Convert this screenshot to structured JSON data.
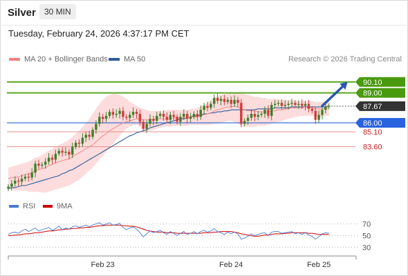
{
  "header": {
    "symbol": "Silver",
    "timeframe": "30 MIN"
  },
  "datetime": "Tuesday, February 24, 2026 4:37:17 PM CET",
  "legend": {
    "ma20": {
      "label": "MA 20 + Bollinger Bands",
      "color": "#f08080"
    },
    "ma50": {
      "label": "MA 50",
      "color": "#2e5c9a"
    },
    "rsi": {
      "label": "RSI",
      "color": "#4a78d6"
    },
    "rsi_ma": {
      "label": "9MA",
      "color": "#cc0000"
    }
  },
  "credit": "Research © 2026 Trading Central",
  "chart_data": [
    {
      "type": "candlestick",
      "ylim": [
        78.8,
        91.4
      ],
      "xlim": [
        0,
        101
      ],
      "x_ticks": [
        {
          "x": 28,
          "label": "Feb 23"
        },
        {
          "x": 66,
          "label": "Feb 24"
        },
        {
          "x": 92,
          "label": "Feb 25"
        }
      ],
      "current_price": {
        "value": 87.67,
        "label": "87.67"
      },
      "levels": [
        {
          "value": 90.1,
          "label": "90.10",
          "kind": "resistance"
        },
        {
          "value": 89.0,
          "label": "89.00",
          "kind": "resistance"
        },
        {
          "value": 86.0,
          "label": "86.00",
          "kind": "pivot"
        },
        {
          "value": 85.1,
          "label": "85.10",
          "kind": "support"
        },
        {
          "value": 83.6,
          "label": "83.60",
          "kind": "support"
        }
      ],
      "forecast_arrow": {
        "from": [
          93,
          87.7
        ],
        "to": [
          100.5,
          90.1
        ]
      },
      "closes": [
        79.6,
        79.9,
        80.2,
        80.1,
        80.4,
        80.6,
        80.5,
        81.0,
        81.9,
        81.7,
        81.8,
        82.1,
        82.5,
        82.3,
        82.9,
        83.2,
        83.0,
        83.1,
        82.8,
        83.6,
        84.0,
        83.9,
        84.5,
        84.8,
        84.6,
        85.3,
        85.9,
        86.6,
        86.4,
        86.7,
        87.1,
        86.8,
        86.9,
        87.2,
        86.6,
        86.5,
        86.8,
        87.1,
        86.9,
        86.1,
        85.4,
        85.9,
        86.4,
        86.2,
        86.7,
        86.9,
        86.6,
        86.3,
        86.8,
        86.6,
        86.1,
        86.6,
        86.9,
        86.4,
        86.6,
        86.9,
        86.6,
        87.3,
        87.7,
        87.5,
        87.9,
        88.5,
        88.2,
        88.4,
        88.1,
        88.3,
        87.9,
        88.3,
        88.0,
        85.9,
        86.2,
        86.5,
        86.9,
        86.6,
        86.8,
        86.9,
        87.3,
        86.7,
        87.8,
        87.9,
        88.0,
        87.7,
        87.8,
        87.9,
        88.0,
        87.8,
        87.9,
        87.7,
        87.9,
        87.4,
        87.2,
        86.3,
        86.8,
        87.3,
        87.6,
        87.7
      ],
      "ma20": [
        80.4,
        80.5,
        80.5,
        80.6,
        80.7,
        80.8,
        80.9,
        81.0,
        81.2,
        81.3,
        81.4,
        81.5,
        81.7,
        81.8,
        82.0,
        82.1,
        82.2,
        82.3,
        82.4,
        82.6,
        82.8,
        83.0,
        83.2,
        83.4,
        83.6,
        83.8,
        84.1,
        84.4,
        84.7,
        84.9,
        85.2,
        85.4,
        85.6,
        85.8,
        86.0,
        86.1,
        86.2,
        86.3,
        86.4,
        86.4,
        86.3,
        86.3,
        86.3,
        86.3,
        86.4,
        86.4,
        86.4,
        86.4,
        86.4,
        86.5,
        86.5,
        86.5,
        86.5,
        86.5,
        86.6,
        86.6,
        86.6,
        86.7,
        86.8,
        86.9,
        87.0,
        87.2,
        87.3,
        87.4,
        87.5,
        87.6,
        87.6,
        87.7,
        87.6,
        87.4,
        87.3,
        87.2,
        87.2,
        87.2,
        87.1,
        87.1,
        87.1,
        87.1,
        87.2,
        87.2,
        87.3,
        87.3,
        87.4,
        87.4,
        87.5,
        87.5,
        87.5,
        87.5,
        87.6,
        87.5,
        87.5,
        87.4,
        87.4,
        87.4,
        87.5,
        87.5
      ],
      "bb_upper": [
        81.5,
        81.6,
        81.7,
        81.8,
        81.9,
        82.0,
        82.1,
        82.3,
        82.5,
        82.6,
        82.8,
        83.0,
        83.2,
        83.4,
        83.6,
        83.8,
        83.9,
        84.1,
        84.3,
        84.6,
        84.9,
        85.2,
        85.6,
        86.0,
        86.4,
        86.9,
        87.4,
        87.9,
        88.3,
        88.6,
        88.8,
        88.9,
        88.9,
        88.8,
        88.6,
        88.4,
        88.1,
        87.9,
        87.7,
        87.5,
        87.4,
        87.3,
        87.2,
        87.2,
        87.2,
        87.2,
        87.2,
        87.3,
        87.3,
        87.3,
        87.3,
        87.3,
        87.3,
        87.3,
        87.4,
        87.4,
        87.5,
        87.6,
        87.8,
        88.0,
        88.3,
        88.5,
        88.7,
        88.8,
        88.9,
        88.9,
        89.0,
        89.0,
        89.0,
        88.9,
        88.9,
        88.8,
        88.7,
        88.6,
        88.6,
        88.5,
        88.5,
        88.4,
        88.4,
        88.4,
        88.4,
        88.3,
        88.3,
        88.3,
        88.3,
        88.3,
        88.2,
        88.2,
        88.2,
        88.2,
        88.2,
        88.1,
        88.1,
        88.1,
        88.1,
        88.1
      ],
      "bb_lower": [
        79.3,
        79.3,
        79.2,
        79.2,
        79.2,
        79.2,
        79.1,
        79.1,
        79.1,
        79.1,
        79.0,
        79.0,
        79.1,
        79.2,
        79.3,
        79.4,
        79.5,
        79.6,
        79.7,
        79.9,
        80.1,
        80.3,
        80.6,
        80.9,
        81.2,
        81.5,
        81.9,
        82.3,
        82.7,
        83.1,
        83.5,
        83.9,
        84.3,
        84.7,
        85.1,
        85.4,
        85.6,
        85.8,
        85.8,
        85.6,
        85.3,
        85.2,
        85.2,
        85.3,
        85.4,
        85.5,
        85.6,
        85.6,
        85.6,
        85.7,
        85.7,
        85.7,
        85.7,
        85.7,
        85.8,
        85.8,
        85.8,
        85.8,
        85.8,
        85.8,
        85.8,
        85.9,
        85.9,
        86.0,
        86.1,
        86.2,
        86.2,
        86.1,
        85.9,
        85.7,
        85.6,
        85.6,
        85.6,
        85.6,
        85.7,
        85.7,
        85.7,
        85.8,
        85.9,
        86.0,
        86.1,
        86.2,
        86.3,
        86.4,
        86.5,
        86.6,
        86.6,
        86.7,
        86.7,
        86.7,
        86.7,
        86.6,
        86.6,
        86.6,
        86.7,
        86.7
      ],
      "ma50": [
        79.4,
        79.5,
        79.5,
        79.6,
        79.7,
        79.7,
        79.8,
        79.9,
        80.0,
        80.1,
        80.2,
        80.3,
        80.4,
        80.5,
        80.6,
        80.7,
        80.9,
        81.0,
        81.2,
        81.3,
        81.5,
        81.7,
        81.9,
        82.1,
        82.3,
        82.5,
        82.7,
        82.9,
        83.1,
        83.3,
        83.5,
        83.7,
        83.9,
        84.1,
        84.3,
        84.5,
        84.7,
        84.8,
        85.0,
        85.1,
        85.2,
        85.3,
        85.5,
        85.6,
        85.7,
        85.8,
        85.9,
        86.0,
        86.1,
        86.2,
        86.3,
        86.4,
        86.4,
        86.5,
        86.6,
        86.7,
        86.7,
        86.8,
        86.9,
        86.9,
        87.0,
        87.0,
        87.1,
        87.1,
        87.2,
        87.2,
        87.3,
        87.3,
        87.3,
        87.3,
        87.3,
        87.3,
        87.3,
        87.3,
        87.4,
        87.4,
        87.4,
        87.4,
        87.4,
        87.5,
        87.5,
        87.5,
        87.5,
        87.5,
        87.6,
        87.6,
        87.6,
        87.6,
        87.6,
        87.6,
        87.6,
        87.6,
        87.6,
        87.6,
        87.6,
        87.7
      ]
    },
    {
      "type": "line",
      "ylim": [
        20,
        80
      ],
      "y_ticks": [
        30,
        50,
        70
      ],
      "series": [
        {
          "name": "RSI",
          "values": [
            52,
            55,
            56,
            54,
            58,
            61,
            57,
            60,
            63,
            58,
            60,
            62,
            64,
            59,
            62,
            66,
            60,
            63,
            61,
            65,
            67,
            64,
            66,
            68,
            65,
            68,
            70,
            72,
            68,
            70,
            72,
            68,
            69,
            71,
            64,
            60,
            63,
            65,
            61,
            55,
            48,
            53,
            58,
            55,
            57,
            59,
            55,
            52,
            57,
            54,
            50,
            54,
            57,
            52,
            54,
            57,
            53,
            57,
            59,
            56,
            58,
            62,
            57,
            55,
            52,
            56,
            53,
            56,
            53,
            44,
            46,
            49,
            53,
            50,
            52,
            54,
            55,
            50,
            56,
            57,
            57,
            54,
            55,
            56,
            57,
            53,
            55,
            52,
            55,
            51,
            49,
            44,
            48,
            53,
            55,
            54
          ]
        },
        {
          "name": "9MA",
          "values": [
            50,
            50,
            51,
            51,
            52,
            53,
            53,
            54,
            55,
            55,
            56,
            57,
            58,
            58,
            59,
            60,
            60,
            61,
            61,
            62,
            62,
            63,
            63,
            64,
            64,
            65,
            66,
            67,
            67,
            68,
            68,
            68,
            68,
            68,
            67,
            67,
            66,
            66,
            65,
            63,
            61,
            59,
            58,
            57,
            56,
            56,
            56,
            55,
            55,
            55,
            54,
            54,
            54,
            54,
            54,
            54,
            54,
            54,
            55,
            55,
            55,
            56,
            56,
            57,
            57,
            57,
            57,
            56,
            55,
            53,
            52,
            51,
            50,
            49,
            49,
            50,
            51,
            51,
            52,
            53,
            53,
            53,
            54,
            54,
            55,
            55,
            55,
            55,
            55,
            54,
            54,
            53,
            52,
            52,
            52,
            52
          ]
        }
      ]
    }
  ]
}
